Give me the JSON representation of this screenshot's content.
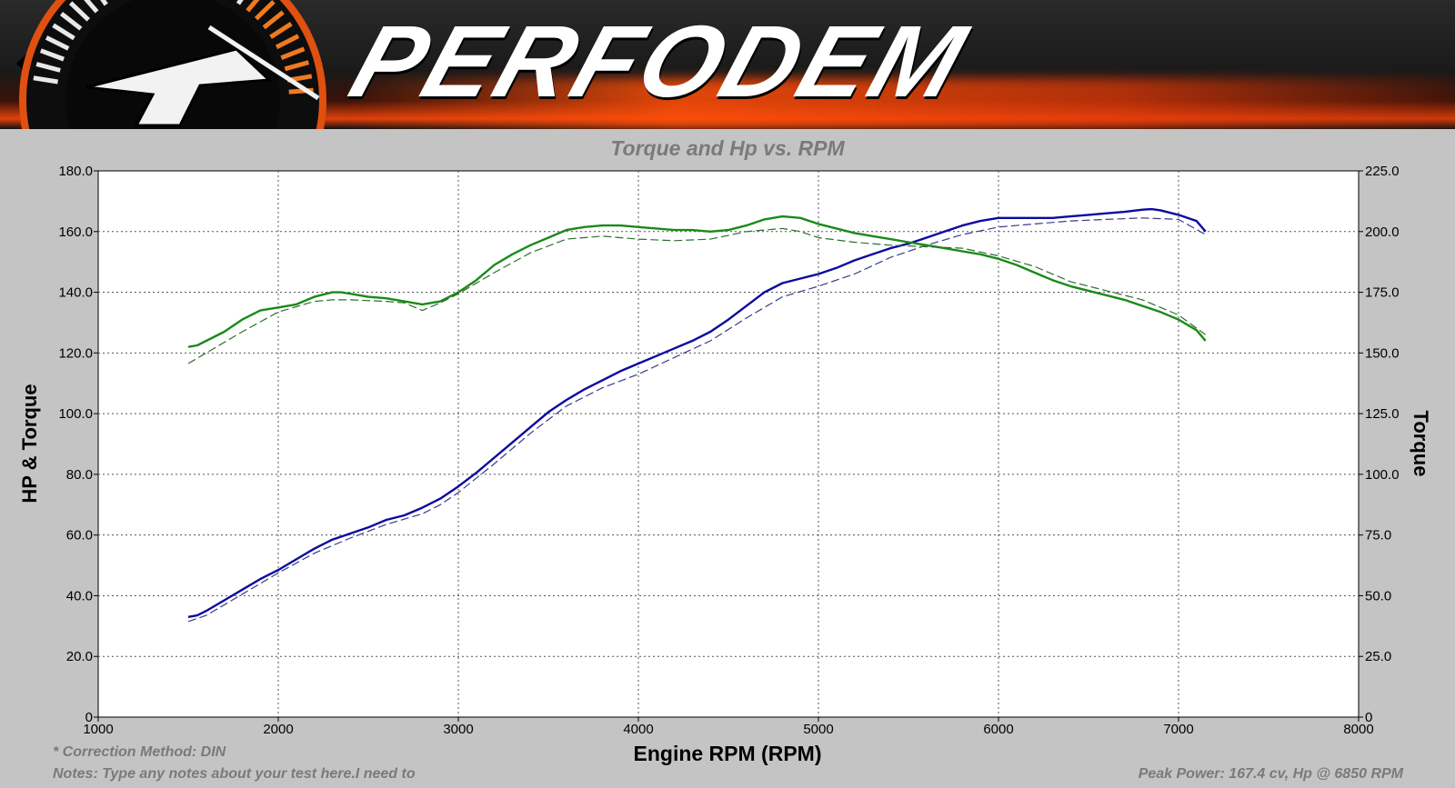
{
  "banner": {
    "brand": "PERFODEM",
    "colors": {
      "accent": "#ff5a0a",
      "dark": "#1a1a1a"
    }
  },
  "footer": {
    "correction": "* Correction Method: DIN",
    "notes": "Notes: Type any notes about your test here.I need to",
    "peak": "Peak Power: 167.4 cv, Hp @ 6850 RPM"
  },
  "chart_data": {
    "type": "line",
    "title": "Torque and Hp vs. RPM",
    "xlabel": "Engine RPM (RPM)",
    "ylabel": "HP & Torque",
    "y2label": "Torque",
    "xlim": [
      1000,
      8000
    ],
    "ylim": [
      0,
      180
    ],
    "y2lim": [
      0,
      225
    ],
    "x_ticks": [
      1000,
      2000,
      3000,
      4000,
      5000,
      6000,
      7000,
      8000
    ],
    "y_ticks": [
      "0",
      "20.0",
      "40.0",
      "60.0",
      "80.0",
      "100.0",
      "120.0",
      "140.0",
      "160.0",
      "180.0"
    ],
    "y2_ticks": [
      "0",
      "25.0",
      "50.0",
      "75.0",
      "100.0",
      "125.0",
      "150.0",
      "175.0",
      "200.0",
      "225.0"
    ],
    "grid": true,
    "series": [
      {
        "axis": "left",
        "color": "#0a0aa0",
        "style": "solid",
        "x": [
          1500,
          1550,
          1600,
          1700,
          1800,
          1900,
          2000,
          2100,
          2200,
          2300,
          2400,
          2500,
          2600,
          2700,
          2800,
          2900,
          3000,
          3100,
          3200,
          3300,
          3400,
          3500,
          3600,
          3700,
          3800,
          3900,
          4000,
          4100,
          4200,
          4300,
          4400,
          4500,
          4600,
          4700,
          4800,
          4900,
          5000,
          5100,
          5200,
          5300,
          5400,
          5500,
          5600,
          5700,
          5800,
          5900,
          6000,
          6100,
          6200,
          6300,
          6400,
          6500,
          6600,
          6700,
          6800,
          6850,
          6900,
          7000,
          7100,
          7150
        ],
        "y": [
          33,
          33.5,
          35,
          38.5,
          42,
          45.5,
          48.5,
          52,
          55.5,
          58.5,
          60.5,
          62.5,
          65,
          66.5,
          69,
          72,
          76,
          80.5,
          85.5,
          90.5,
          95.5,
          100.5,
          104.5,
          108,
          111,
          114,
          116.5,
          119,
          121.5,
          124,
          127,
          131,
          135.5,
          140,
          143,
          144.5,
          146,
          148,
          150.5,
          152.5,
          154.5,
          156,
          158,
          160,
          162,
          163.5,
          164.5,
          164.5,
          164.5,
          164.5,
          165,
          165.5,
          166,
          166.5,
          167.2,
          167.4,
          167,
          165.5,
          163.5,
          160
        ]
      },
      {
        "axis": "left",
        "color": "#3a3a8a",
        "style": "dashed",
        "x": [
          1500,
          1600,
          1800,
          2000,
          2200,
          2400,
          2600,
          2800,
          2900,
          3000,
          3200,
          3400,
          3600,
          3800,
          4000,
          4200,
          4400,
          4600,
          4800,
          5000,
          5200,
          5400,
          5600,
          5800,
          6000,
          6200,
          6400,
          6600,
          6800,
          7000,
          7150
        ],
        "y": [
          31.5,
          33.5,
          40.5,
          47.5,
          54,
          59,
          63.5,
          67,
          70,
          74,
          83.5,
          93.5,
          102.5,
          108.5,
          113,
          118.5,
          124,
          131.5,
          138.5,
          142,
          146,
          151.5,
          155.5,
          159,
          161.5,
          162.5,
          163.5,
          164,
          164.5,
          164,
          159
        ]
      },
      {
        "axis": "left",
        "color": "#1a8a1a",
        "style": "solid",
        "x": [
          1500,
          1550,
          1600,
          1700,
          1800,
          1900,
          2000,
          2100,
          2200,
          2300,
          2350,
          2400,
          2500,
          2600,
          2700,
          2800,
          2900,
          3000,
          3100,
          3200,
          3300,
          3400,
          3500,
          3600,
          3700,
          3800,
          3900,
          4000,
          4100,
          4200,
          4300,
          4400,
          4500,
          4600,
          4700,
          4800,
          4900,
          5000,
          5100,
          5200,
          5300,
          5400,
          5500,
          5600,
          5700,
          5800,
          5900,
          6000,
          6100,
          6200,
          6300,
          6400,
          6500,
          6600,
          6700,
          6800,
          6900,
          7000,
          7100,
          7150
        ],
        "y": [
          122,
          122.5,
          124,
          127,
          131,
          134,
          135,
          136,
          138.5,
          140,
          140,
          139.5,
          138.5,
          138,
          137,
          136,
          137,
          140,
          144,
          149,
          152.5,
          155.5,
          158,
          160.5,
          161.5,
          162,
          162,
          161.5,
          161,
          160.5,
          160.5,
          160,
          160.5,
          162,
          164,
          165,
          164.5,
          162.5,
          161,
          159.5,
          158.5,
          157.5,
          156.5,
          155.5,
          154.5,
          153.5,
          152.5,
          151,
          149,
          146.5,
          144,
          142,
          140.5,
          139,
          137.5,
          135.5,
          133.5,
          131,
          127.5,
          124
        ]
      },
      {
        "axis": "left",
        "color": "#2e6e2e",
        "style": "dashed",
        "x": [
          1500,
          1600,
          1800,
          2000,
          2200,
          2300,
          2400,
          2600,
          2700,
          2800,
          2900,
          3000,
          3200,
          3400,
          3600,
          3800,
          3900,
          4000,
          4200,
          4400,
          4600,
          4800,
          4900,
          5000,
          5200,
          5400,
          5600,
          5800,
          6000,
          6200,
          6400,
          6600,
          6800,
          7000,
          7150
        ],
        "y": [
          116.5,
          120,
          127,
          133.5,
          137,
          137.5,
          137.5,
          137,
          136.5,
          134,
          136.5,
          139.5,
          146.5,
          153,
          157.5,
          158.5,
          158,
          157.5,
          157,
          157.5,
          160,
          161,
          160,
          158,
          156.5,
          155.5,
          155,
          154.5,
          152,
          148.5,
          143.5,
          140.5,
          137.5,
          132.5,
          126
        ]
      }
    ]
  }
}
